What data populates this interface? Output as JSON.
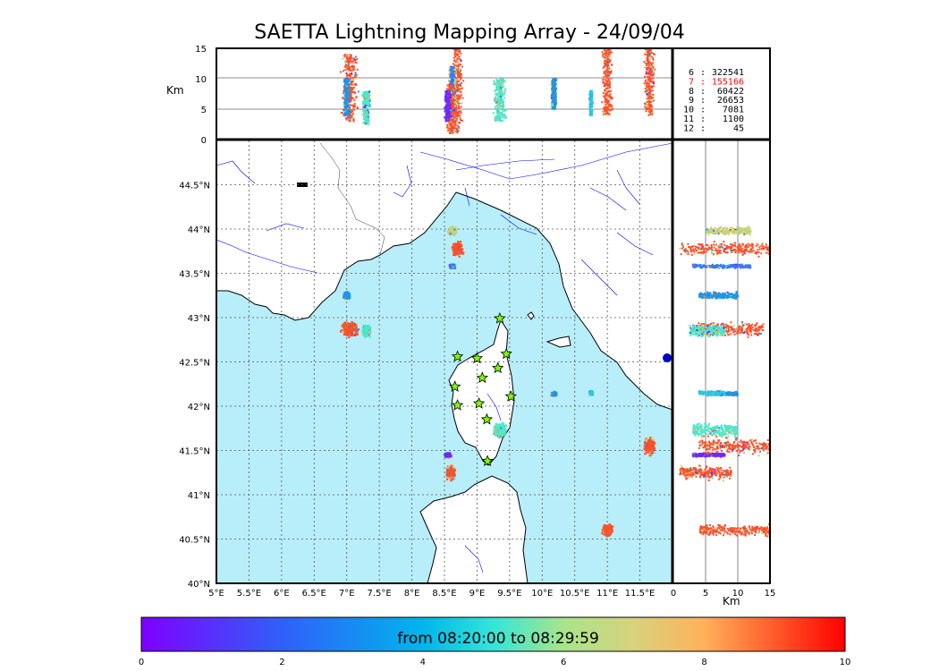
{
  "title": "SAETTA Lightning Mapping Array - 24/09/04",
  "chart_data": {
    "type": "scatter",
    "map": {
      "lon_range": [
        5.0,
        12.0
      ],
      "lat_range": [
        40.0,
        45.0
      ],
      "lon_ticks": [
        "5°E",
        "5.5°E",
        "6°E",
        "6.5°E",
        "7°E",
        "7.5°E",
        "8°E",
        "8.5°E",
        "9°E",
        "9.5°E",
        "10°E",
        "10.5°E",
        "11°E",
        "11.5°E"
      ],
      "lat_ticks": [
        "40°N",
        "40.5°N",
        "41°N",
        "41.5°N",
        "42°N",
        "42.5°N",
        "43°N",
        "43.5°N",
        "44°N",
        "44.5°N"
      ],
      "grid": "dotted",
      "sea_color": "#b8eef9",
      "land_color": "#ffffff",
      "river_color": "#0000ff"
    },
    "altitude_panel": {
      "ylabel": "Km",
      "yticks": [
        "0",
        "5",
        "10",
        "15"
      ],
      "y_range": [
        0,
        15
      ]
    },
    "side_panel": {
      "xlabel": "Km",
      "xticks": [
        "0",
        "5",
        "10",
        "15"
      ],
      "x_range": [
        0,
        15
      ]
    },
    "station_count_table": [
      {
        "stations": "6",
        "sources": "322541",
        "highlight": false
      },
      {
        "stations": "7",
        "sources": "155166",
        "highlight": true
      },
      {
        "stations": "8",
        "sources": "60422",
        "highlight": false
      },
      {
        "stations": "9",
        "sources": "26653",
        "highlight": false
      },
      {
        "stations": "10",
        "sources": "7081",
        "highlight": false
      },
      {
        "stations": "11",
        "sources": "1100",
        "highlight": false
      },
      {
        "stations": "12",
        "sources": "45",
        "highlight": false
      }
    ],
    "stations": [
      [
        8.7,
        42.56
      ],
      [
        9.0,
        42.54
      ],
      [
        9.45,
        42.59
      ],
      [
        9.32,
        42.43
      ],
      [
        9.08,
        42.32
      ],
      [
        8.66,
        42.22
      ],
      [
        9.52,
        42.11
      ],
      [
        8.7,
        42.01
      ],
      [
        9.03,
        42.03
      ],
      [
        9.15,
        41.85
      ],
      [
        9.35,
        42.99
      ],
      [
        9.16,
        41.38
      ]
    ],
    "clusters": [
      {
        "lon": 7.05,
        "lat": 42.87,
        "alt_range": [
          3,
          14
        ],
        "color": "#ff5028",
        "lon_spread": 0.15,
        "lat_spread": 0.1
      },
      {
        "lon": 7.3,
        "lat": 42.85,
        "alt_range": [
          2.5,
          8
        ],
        "color": "#50e6c8",
        "lon_spread": 0.08,
        "lat_spread": 0.08
      },
      {
        "lon": 7.0,
        "lat": 43.25,
        "alt_range": [
          4,
          10
        ],
        "color": "#1e96e6",
        "lon_spread": 0.06,
        "lat_spread": 0.05
      },
      {
        "lon": 8.7,
        "lat": 43.78,
        "alt_range": [
          1,
          15
        ],
        "color": "#ff5028",
        "lon_spread": 0.1,
        "lat_spread": 0.1
      },
      {
        "lon": 8.62,
        "lat": 43.98,
        "alt_range": [
          5,
          12
        ],
        "color": "#c8d278",
        "lon_spread": 0.08,
        "lat_spread": 0.06
      },
      {
        "lon": 8.62,
        "lat": 43.58,
        "alt_range": [
          3,
          12
        ],
        "color": "#3c78ff",
        "lon_spread": 0.05,
        "lat_spread": 0.03
      },
      {
        "lon": 9.35,
        "lat": 41.73,
        "alt_range": [
          3,
          10
        ],
        "color": "#50e6c8",
        "lon_spread": 0.12,
        "lat_spread": 0.1
      },
      {
        "lon": 8.6,
        "lat": 41.25,
        "alt_range": [
          1,
          9
        ],
        "color": "#ff5028",
        "lon_spread": 0.08,
        "lat_spread": 0.1
      },
      {
        "lon": 8.55,
        "lat": 41.45,
        "alt_range": [
          3,
          8
        ],
        "color": "#6e28ff",
        "lon_spread": 0.06,
        "lat_spread": 0.03
      },
      {
        "lon": 10.18,
        "lat": 42.14,
        "alt_range": [
          5,
          10
        ],
        "color": "#1e96e6",
        "lon_spread": 0.05,
        "lat_spread": 0.03
      },
      {
        "lon": 10.75,
        "lat": 42.15,
        "alt_range": [
          4,
          8
        ],
        "color": "#28c8e6",
        "lon_spread": 0.03,
        "lat_spread": 0.03
      },
      {
        "lon": 11.0,
        "lat": 40.6,
        "alt_range": [
          4,
          15
        ],
        "color": "#ff5028",
        "lon_spread": 0.1,
        "lat_spread": 0.08
      },
      {
        "lon": 11.65,
        "lat": 41.55,
        "alt_range": [
          4,
          15
        ],
        "color": "#ff5028",
        "lon_spread": 0.1,
        "lat_spread": 0.12
      }
    ],
    "colorbar": {
      "label": "from 08:20:00 to 08:29:59",
      "ticks": [
        "0",
        "2",
        "4",
        "6",
        "8",
        "10"
      ],
      "range": [
        0,
        10
      ],
      "colormap": "rainbow"
    }
  }
}
